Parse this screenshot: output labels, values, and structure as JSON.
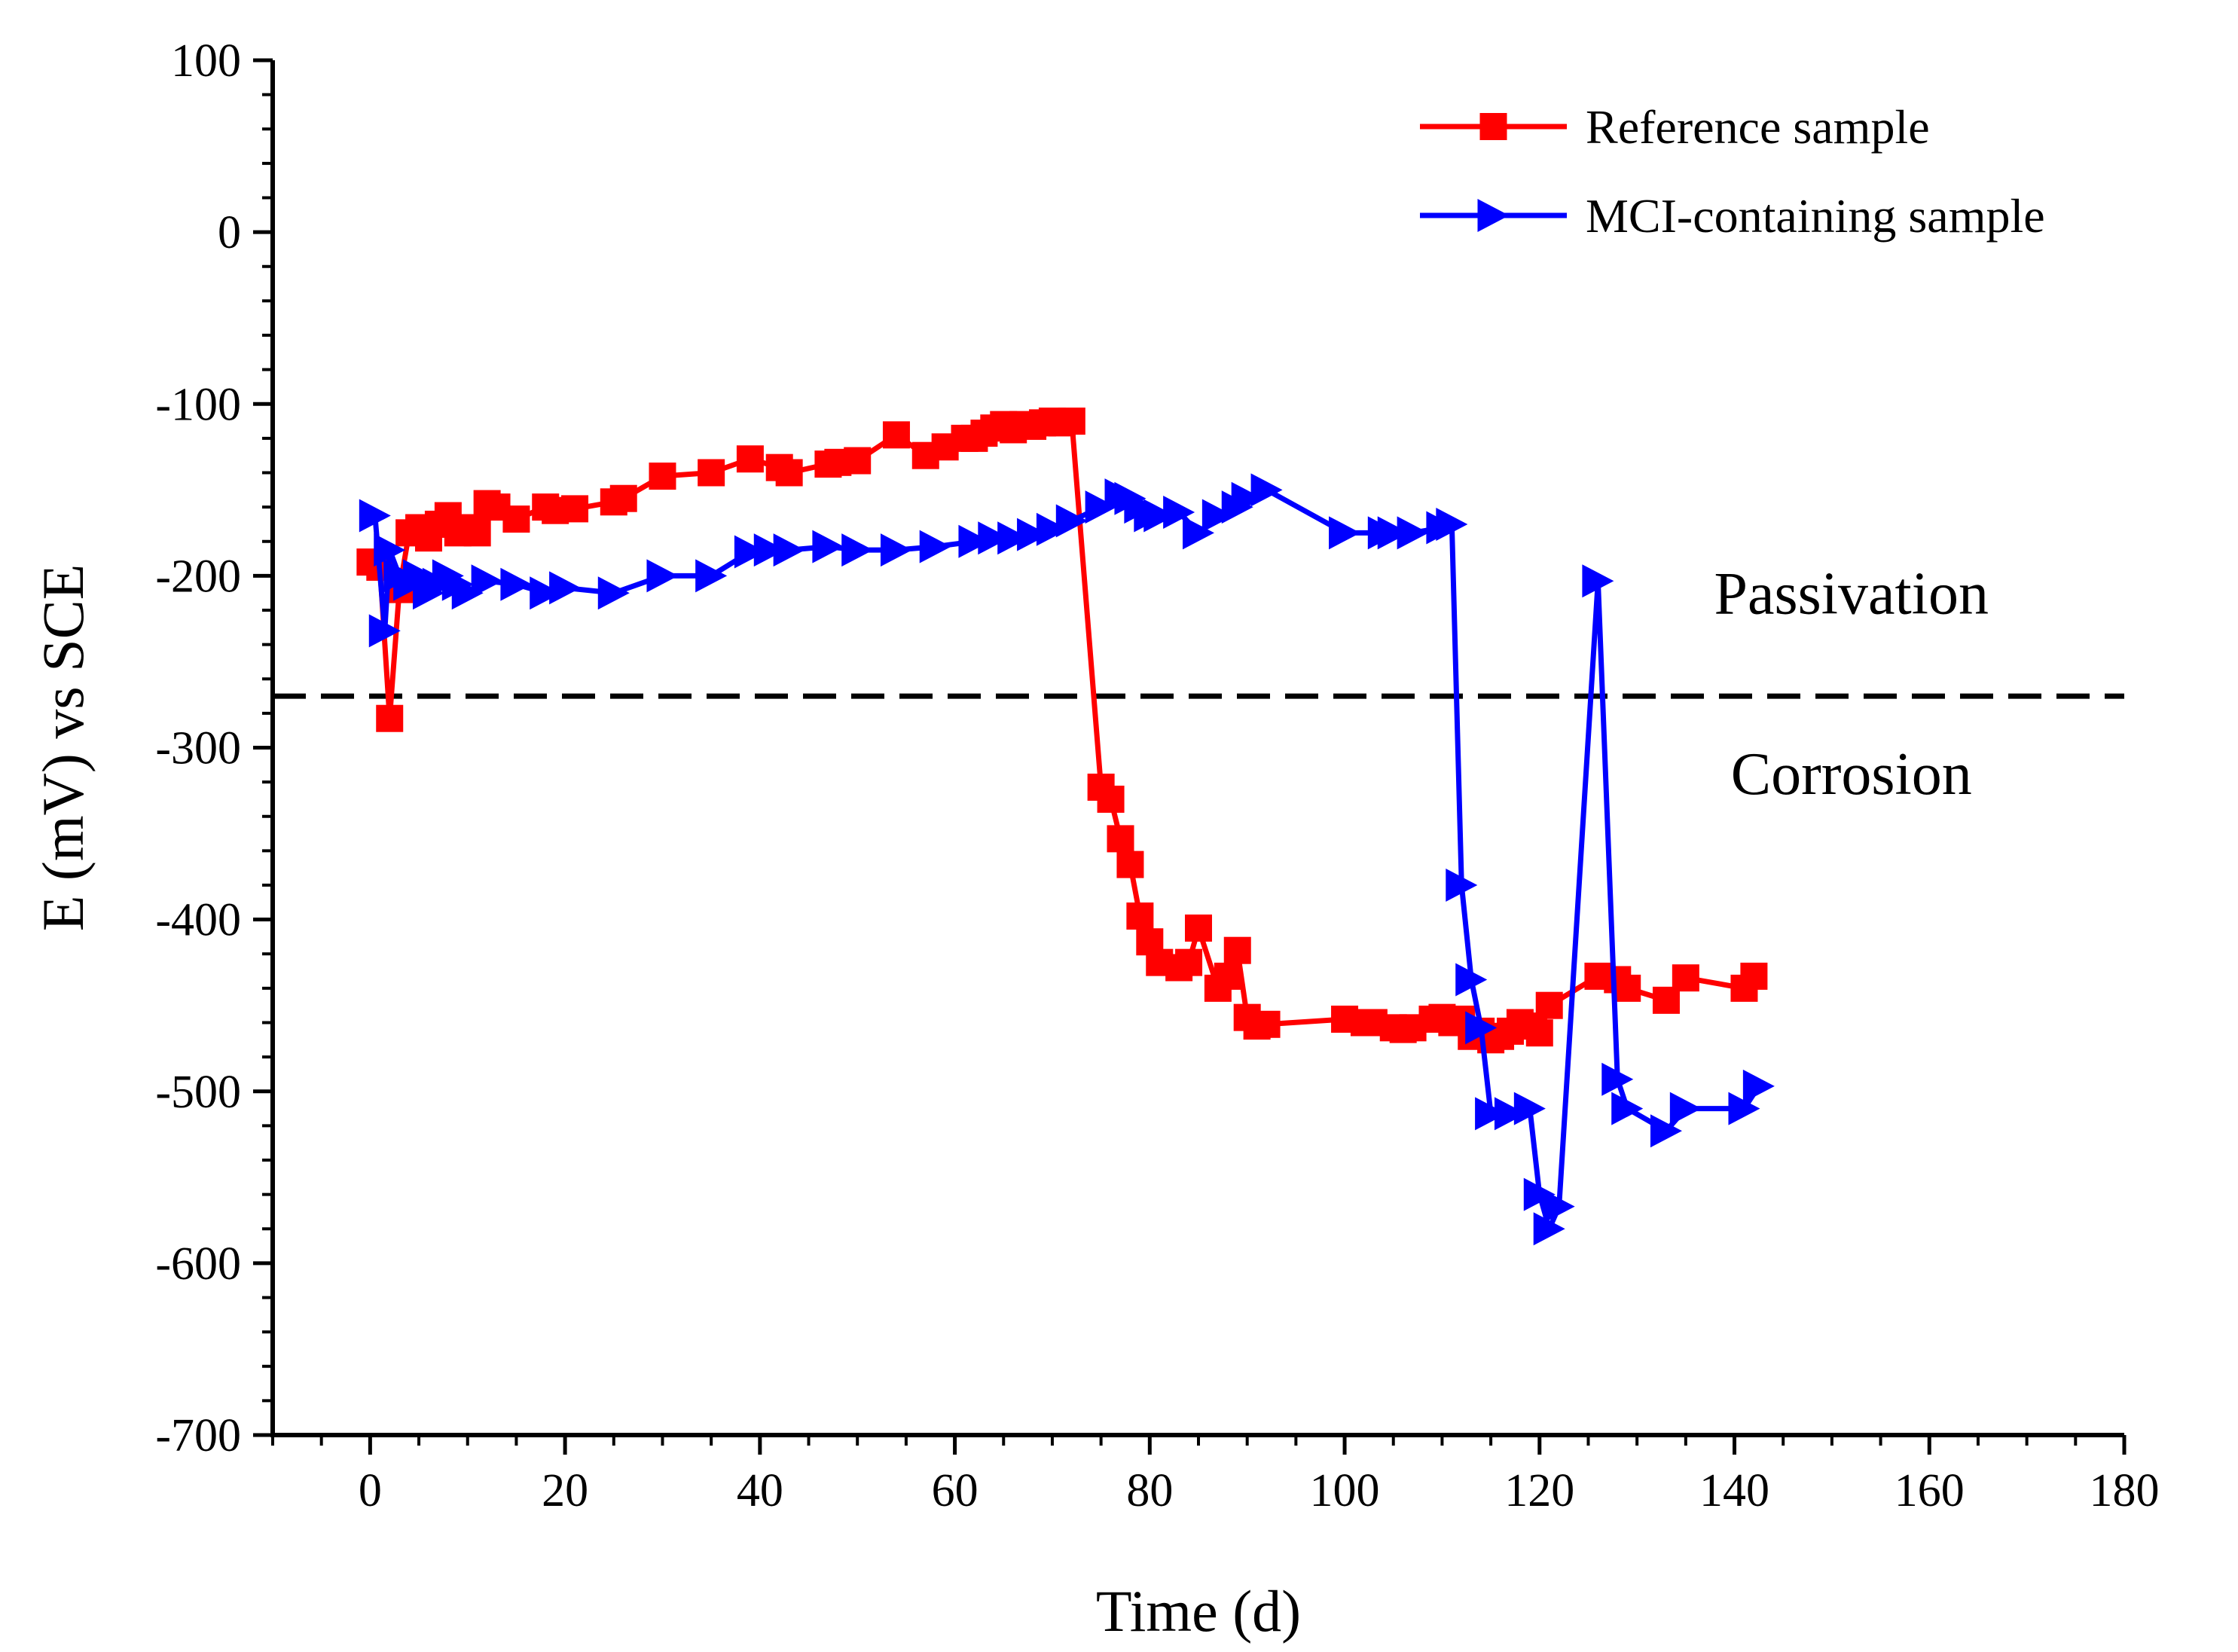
{
  "chart_data": {
    "type": "line",
    "title": "",
    "xlabel": "Time (d)",
    "ylabel": "E (mV) vs SCE",
    "xlim": [
      -10,
      180
    ],
    "ylim": [
      -700,
      100
    ],
    "xticks": [
      0,
      20,
      40,
      60,
      80,
      100,
      120,
      140,
      160,
      180
    ],
    "yticks": [
      100,
      0,
      -100,
      -200,
      -300,
      -400,
      -500,
      -600,
      -700
    ],
    "xtick_labels": [
      "0",
      "20",
      "40",
      "60",
      "80",
      "100",
      "120",
      "140",
      "160",
      "180"
    ],
    "ytick_labels": [
      "100",
      "0",
      "-100",
      "-200",
      "-300",
      "-400",
      "-500",
      "-600",
      "-700"
    ],
    "grid": false,
    "legend_position": "top-right",
    "threshold": {
      "y": -270,
      "style": "dashed",
      "color": "#000000"
    },
    "annotations": [
      {
        "text": "Passivation",
        "x": 152,
        "y": -222
      },
      {
        "text": "Corrosion",
        "x": 152,
        "y": -327
      }
    ],
    "series": [
      {
        "name": "Reference sample",
        "color": "#ff0000",
        "marker": "square",
        "x": [
          0,
          1,
          2,
          3,
          4,
          5,
          6,
          7,
          8,
          9,
          10,
          11,
          12,
          13,
          15,
          18,
          19,
          21,
          25,
          26,
          30,
          35,
          39,
          42,
          43,
          47,
          48,
          50,
          54,
          57,
          59,
          61,
          62,
          63,
          64,
          65,
          66,
          67,
          68,
          69,
          70,
          71,
          72,
          75,
          76,
          77,
          78,
          79,
          80,
          81,
          83,
          84,
          85,
          87,
          88,
          89,
          90,
          91,
          92,
          100,
          102,
          103,
          105,
          106,
          107,
          109,
          110,
          111,
          112,
          113,
          114,
          115,
          116,
          117,
          118,
          119,
          120,
          121,
          126,
          128,
          129,
          133,
          135,
          141,
          142
        ],
        "y": [
          -192,
          -195,
          -283,
          -208,
          -175,
          -172,
          -178,
          -170,
          -165,
          -175,
          -172,
          -175,
          -158,
          -160,
          -167,
          -160,
          -162,
          -161,
          -157,
          -155,
          -142,
          -140,
          -132,
          -137,
          -140,
          -135,
          -134,
          -133,
          -118,
          -130,
          -125,
          -120,
          -120,
          -117,
          -114,
          -112,
          -115,
          -112,
          -113,
          -111,
          -110,
          -111,
          -110,
          -323,
          -330,
          -353,
          -368,
          -398,
          -413,
          -425,
          -428,
          -425,
          -405,
          -440,
          -433,
          -418,
          -457,
          -462,
          -461,
          -458,
          -460,
          -460,
          -463,
          -464,
          -463,
          -458,
          -457,
          -460,
          -458,
          -468,
          -465,
          -470,
          -468,
          -465,
          -460,
          -462,
          -466,
          -450,
          -433,
          -435,
          -440,
          -447,
          -434,
          -440,
          -433
        ]
      },
      {
        "name": "MCI-containing sample",
        "color": "#0000ff",
        "marker": "triangle-right",
        "x": [
          0.5,
          1.5,
          2,
          3,
          4,
          5,
          6,
          7,
          8,
          9,
          10,
          12,
          15,
          18,
          20,
          25,
          30,
          35,
          39,
          41,
          43,
          47,
          50,
          54,
          58,
          62,
          64,
          66,
          68,
          70,
          72,
          75,
          77,
          78,
          79,
          80,
          81,
          83,
          85,
          87,
          89,
          90,
          92,
          100,
          104,
          105,
          107,
          110,
          111,
          112,
          113,
          114,
          115,
          117,
          119,
          120,
          121,
          122,
          126,
          128,
          129,
          133,
          135,
          141,
          142.5
        ],
        "y": [
          -165,
          -232,
          -185,
          -200,
          -205,
          -200,
          -210,
          -205,
          -200,
          -205,
          -210,
          -203,
          -205,
          -210,
          -207,
          -210,
          -200,
          -200,
          -186,
          -185,
          -185,
          -183,
          -185,
          -185,
          -183,
          -180,
          -178,
          -178,
          -176,
          -173,
          -168,
          -160,
          -153,
          -155,
          -160,
          -165,
          -165,
          -163,
          -175,
          -165,
          -160,
          -155,
          -150,
          -175,
          -175,
          -175,
          -175,
          -172,
          -170,
          -380,
          -435,
          -463,
          -513,
          -513,
          -510,
          -560,
          -580,
          -567,
          -203,
          -493,
          -510,
          -523,
          -510,
          -510,
          -497
        ]
      }
    ]
  }
}
